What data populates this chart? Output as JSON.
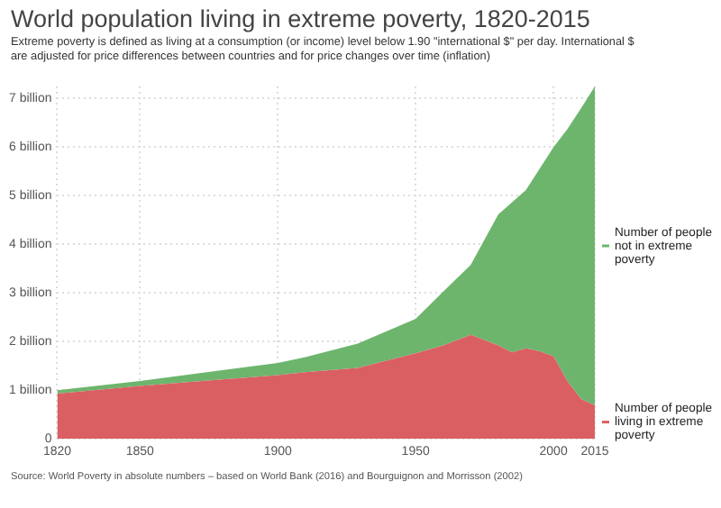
{
  "chart_data": {
    "type": "area",
    "title": "World population living in extreme poverty, 1820-2015",
    "subtitle": "Extreme poverty is defined as living at a consumption (or income) level below 1.90 \"international $\" per day. International $ are adjusted for price differences between countries and for price changes over time (inflation)",
    "x": [
      1820,
      1850,
      1900,
      1910,
      1929,
      1950,
      1960,
      1970,
      1980,
      1985,
      1990,
      1995,
      2000,
      2005,
      2010,
      2015
    ],
    "series": [
      {
        "name": "Number of people living in extreme poverty",
        "color": "#d95f63",
        "values": [
          0.93,
          1.09,
          1.31,
          1.37,
          1.46,
          1.76,
          1.92,
          2.14,
          1.92,
          1.78,
          1.86,
          1.8,
          1.7,
          1.19,
          0.82,
          0.69
        ]
      },
      {
        "name": "Number of people not in extreme poverty",
        "color": "#6db56d",
        "values": [
          0.07,
          0.1,
          0.25,
          0.31,
          0.5,
          0.71,
          1.11,
          1.44,
          2.7,
          3.09,
          3.26,
          3.76,
          4.3,
          5.18,
          5.98,
          6.56
        ]
      }
    ],
    "stacked": true,
    "xlim": [
      1820,
      2015
    ],
    "xticks": [
      1820,
      1850,
      1900,
      1950,
      2000,
      2015
    ],
    "ylim": [
      0,
      7.25
    ],
    "yticks": [
      0,
      {
        "value": 1,
        "label": "1 billion"
      },
      {
        "value": 2,
        "label": "2 billion"
      },
      {
        "value": 3,
        "label": "3 billion"
      },
      {
        "value": 4,
        "label": "4 billion"
      },
      {
        "value": 5,
        "label": "5 billion"
      },
      {
        "value": 6,
        "label": "6 billion"
      },
      {
        "value": 7,
        "label": "7 billion"
      }
    ],
    "grid": true,
    "legend": "right",
    "annotations": [
      "Source: World Poverty in absolute numbers – based on World Bank (2016) and Bourguignon and Morrisson (2002)"
    ]
  }
}
